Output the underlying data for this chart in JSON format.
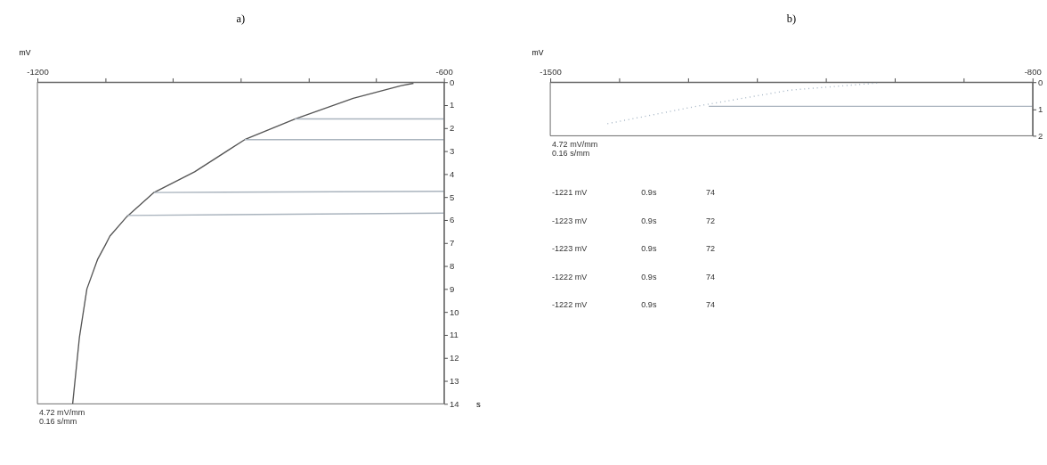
{
  "chart_data": [
    {
      "type": "line",
      "title": "a)",
      "xlabel": "mV",
      "ylabel": "s",
      "xlim": [
        -1200,
        -600
      ],
      "ylim": [
        14,
        0
      ],
      "xticks": [
        -1200,
        {
          "value": -1100,
          "label": null
        },
        {
          "value": -1000,
          "label": null
        },
        {
          "value": -900,
          "label": null
        },
        {
          "value": -800,
          "label": null
        },
        {
          "value": -700,
          "label": null
        },
        -600
      ],
      "yticks": [
        0,
        1,
        2,
        3,
        4,
        5,
        6,
        7,
        8,
        9,
        10,
        11,
        12,
        13,
        14
      ],
      "series": [
        {
          "color": "#555555",
          "x": [
            -1148,
            -1138,
            -1127,
            -1111,
            -1100,
            -1093,
            -1068,
            -1028,
            -968,
            -894,
            -820,
            -734,
            -663,
            -645
          ],
          "values": [
            14.0,
            11.1,
            9.0,
            7.7,
            7.1,
            6.7,
            5.85,
            4.8,
            3.9,
            2.5,
            1.6,
            0.7,
            0.15,
            0.05
          ]
        },
        {
          "color": "#aab4be",
          "x": [
            -820,
            -600
          ],
          "values": [
            1.6,
            1.6
          ]
        },
        {
          "color": "#aab4be",
          "x": [
            -894,
            -600
          ],
          "values": [
            2.5,
            2.5
          ]
        },
        {
          "color": "#aab4be",
          "x": [
            -1028,
            -600
          ],
          "values": [
            4.8,
            4.75
          ]
        },
        {
          "color": "#aab4be",
          "x": [
            -1068,
            -600
          ],
          "values": [
            5.8,
            5.7
          ]
        }
      ],
      "grid": false,
      "marker": "none",
      "annotations": [
        "4.72 mV/mm",
        "0.16 s/mm"
      ]
    },
    {
      "type": "line",
      "title": "b)",
      "xlabel": "mV",
      "xlim": [
        -1500,
        -800
      ],
      "ylim": [
        2,
        0
      ],
      "xticks": [
        -1500,
        {
          "value": -1400,
          "label": null
        },
        {
          "value": -1300,
          "label": null
        },
        {
          "value": -1200,
          "label": null
        },
        {
          "value": -1100,
          "label": null
        },
        {
          "value": -1000,
          "label": null
        },
        {
          "value": -900,
          "label": null
        },
        -800
      ],
      "yticks": [
        0,
        1,
        2
      ],
      "series": [
        {
          "color": "#9fb0c0",
          "line_style": "dotted",
          "x": [
            -1417,
            -1288,
            -1153,
            -1025
          ],
          "values": [
            1.55,
            0.9,
            0.3,
            0.03
          ]
        },
        {
          "color": "#aab4be",
          "x": [
            -1270,
            -800
          ],
          "values": [
            0.9,
            0.9
          ]
        }
      ],
      "grid": false,
      "marker": "none",
      "annotations": [
        "4.72 mV/mm",
        "0.16 s/mm",
        "-1221 mV",
        "0.9s",
        "74",
        "-1223 mV",
        "0.9s",
        "72",
        "-1223 mV",
        "0.9s",
        "72",
        "-1222 mV",
        "0.9s",
        "74",
        "-1222 mV",
        "0.9s",
        "74"
      ]
    }
  ]
}
